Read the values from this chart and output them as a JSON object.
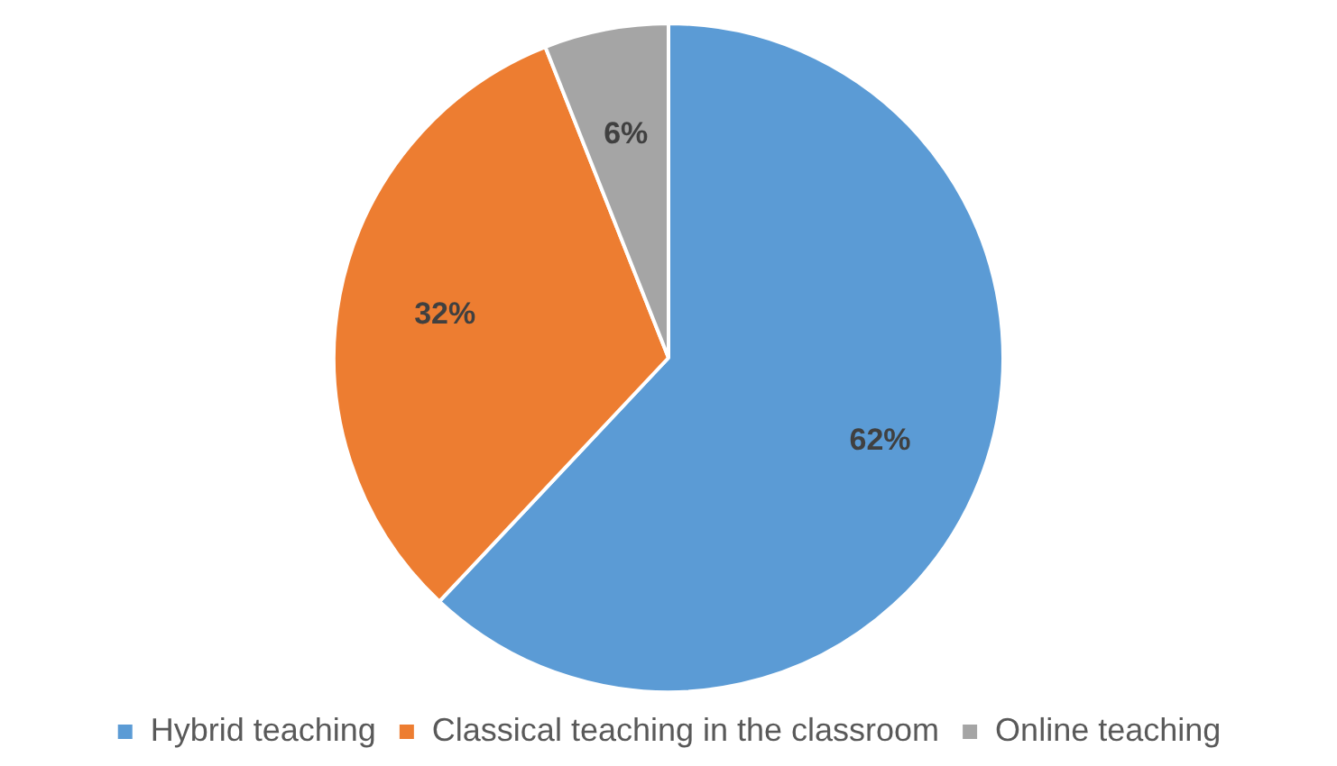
{
  "chart_data": {
    "type": "pie",
    "categories": [
      "Hybrid teaching",
      "Classical teaching in the classroom",
      "Online teaching"
    ],
    "values": [
      62,
      32,
      6
    ],
    "colors": [
      "#5b9bd5",
      "#ed7d31",
      "#a5a5a5"
    ],
    "value_labels": [
      "62%",
      "32%",
      "6%"
    ],
    "legend": "bottom"
  }
}
